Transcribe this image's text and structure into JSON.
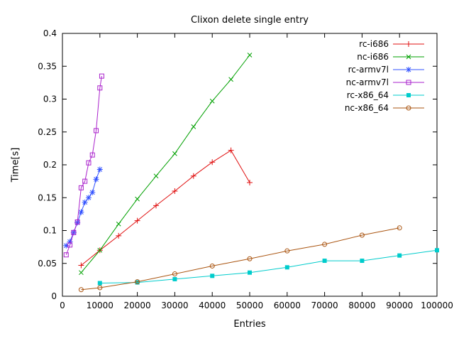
{
  "chart_data": {
    "type": "line",
    "title": "Clixon delete single entry",
    "xlabel": "Entries",
    "ylabel": "Time[s]",
    "xlim": [
      0,
      100000
    ],
    "ylim": [
      0,
      0.4
    ],
    "xticks": [
      0,
      10000,
      20000,
      30000,
      40000,
      50000,
      60000,
      70000,
      80000,
      90000,
      100000
    ],
    "xtick_labels": [
      "0",
      "10000",
      "20000",
      "30000",
      "40000",
      "50000",
      "60000",
      "70000",
      "80000",
      "90000",
      "100000"
    ],
    "yticks": [
      0,
      0.05,
      0.1,
      0.15,
      0.2,
      0.25,
      0.3,
      0.35,
      0.4
    ],
    "ytick_labels": [
      "0",
      "0.05",
      "0.1",
      "0.15",
      "0.2",
      "0.25",
      "0.3",
      "0.35",
      "0.4"
    ],
    "grid": false,
    "legend_position": "top-right",
    "background": "#ffffff",
    "series": [
      {
        "name": "rc-i686",
        "color": "#e01010",
        "marker": "plus",
        "x": [
          5000,
          10000,
          15000,
          20000,
          25000,
          30000,
          35000,
          40000,
          45000,
          50000
        ],
        "y": [
          0.047,
          0.07,
          0.092,
          0.115,
          0.138,
          0.16,
          0.183,
          0.204,
          0.222,
          0.173
        ]
      },
      {
        "name": "nc-i686",
        "color": "#00a000",
        "marker": "cross",
        "x": [
          5000,
          10000,
          15000,
          20000,
          25000,
          30000,
          35000,
          40000,
          45000,
          50000
        ],
        "y": [
          0.036,
          0.07,
          0.11,
          0.148,
          0.183,
          0.217,
          0.258,
          0.297,
          0.33,
          0.367
        ]
      },
      {
        "name": "rc-armv7l",
        "color": "#3050ff",
        "marker": "asterisk",
        "x": [
          1000,
          2000,
          3000,
          4000,
          5000,
          6000,
          7000,
          8000,
          9000,
          10000
        ],
        "y": [
          0.077,
          0.083,
          0.097,
          0.112,
          0.128,
          0.143,
          0.15,
          0.158,
          0.178,
          0.193
        ]
      },
      {
        "name": "nc-armv7l",
        "color": "#aa22cc",
        "marker": "open-square",
        "x": [
          1000,
          2000,
          3000,
          4000,
          5000,
          6000,
          7000,
          8000,
          9000,
          10000,
          10500
        ],
        "y": [
          0.063,
          0.078,
          0.097,
          0.113,
          0.165,
          0.175,
          0.203,
          0.215,
          0.252,
          0.317,
          0.335
        ]
      },
      {
        "name": "rc-x86_64",
        "color": "#00cccc",
        "marker": "filled-square",
        "x": [
          10000,
          20000,
          30000,
          40000,
          50000,
          60000,
          70000,
          80000,
          90000,
          100000
        ],
        "y": [
          0.02,
          0.021,
          0.026,
          0.031,
          0.036,
          0.044,
          0.054,
          0.054,
          0.062,
          0.07
        ]
      },
      {
        "name": "nc-x86_64",
        "color": "#aa5511",
        "marker": "open-circle",
        "x": [
          5000,
          10000,
          20000,
          30000,
          40000,
          50000,
          60000,
          70000,
          80000,
          90000
        ],
        "y": [
          0.01,
          0.013,
          0.022,
          0.034,
          0.046,
          0.057,
          0.069,
          0.079,
          0.093,
          0.104
        ]
      }
    ]
  }
}
